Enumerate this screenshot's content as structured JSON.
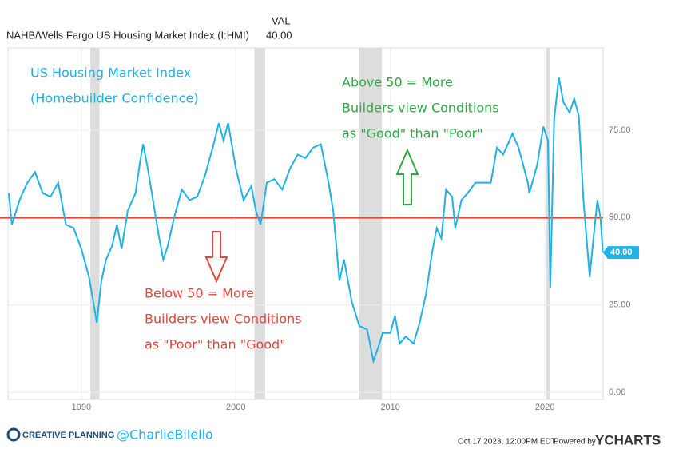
{
  "header": {
    "column": "VAL",
    "series_name": "NAHB/Wells Fargo US Housing Market Index (I:HMI)",
    "value": "40.00"
  },
  "chart_data": {
    "type": "line",
    "x": [
      1985.3,
      1985.5,
      1986,
      1986.5,
      1987,
      1987.5,
      1988,
      1988.5,
      1989,
      1989.5,
      1990,
      1990.5,
      1991,
      1991.3,
      1991.6,
      1992,
      1992.3,
      1992.6,
      1993,
      1993.5,
      1993.8,
      1994,
      1994.3,
      1994.6,
      1995,
      1995.3,
      1995.6,
      1996,
      1996.5,
      1997,
      1997.5,
      1998,
      1998.5,
      1998.9,
      1999.2,
      1999.5,
      2000,
      2000.5,
      2001,
      2001.3,
      2001.6,
      2002,
      2002.5,
      2003,
      2003.5,
      2004,
      2004.5,
      2005,
      2005.5,
      2006,
      2006.3,
      2006.7,
      2007,
      2007.5,
      2008,
      2008.5,
      2008.9,
      2009.3,
      2009.5,
      2010,
      2010.3,
      2010.6,
      2011,
      2011.5,
      2011.9,
      2012.3,
      2012.7,
      2013,
      2013.3,
      2013.6,
      2014,
      2014.2,
      2014.6,
      2015,
      2015.5,
      2016,
      2016.5,
      2016.9,
      2017.3,
      2017.9,
      2018.3,
      2018.9,
      2019,
      2019.5,
      2019.9,
      2020.2,
      2020.35,
      2020.6,
      2020.9,
      2021.2,
      2021.6,
      2021.9,
      2022.2,
      2022.5,
      2022.9,
      2023.1,
      2023.4,
      2023.6,
      2023.75
    ],
    "series": [
      {
        "name": "NAHB/Wells Fargo US Housing Market Index (I:HMI)",
        "color": "#1fb2e6",
        "values": [
          57,
          48,
          55,
          60,
          63,
          57,
          56,
          60,
          48,
          47,
          41,
          33,
          20,
          32,
          38,
          42,
          48,
          41,
          52,
          57,
          66,
          71,
          64,
          56,
          45,
          38,
          42,
          50,
          58,
          55,
          56,
          62,
          70,
          77,
          72,
          77,
          64,
          55,
          59,
          52,
          48,
          60,
          61,
          58,
          64,
          68,
          67,
          70,
          71,
          60,
          52,
          32,
          38,
          26,
          19,
          18,
          9,
          14,
          17,
          17,
          22,
          14,
          16,
          14,
          20,
          28,
          40,
          47,
          44,
          58,
          56,
          47,
          55,
          57,
          60,
          60,
          60,
          70,
          68,
          74,
          70,
          60,
          57,
          65,
          76,
          72,
          30,
          78,
          90,
          83,
          80,
          84,
          79,
          55,
          33,
          42,
          55,
          50,
          40
        ],
        "end_label": "40.00"
      }
    ],
    "xlim": [
      1985.25,
      2023.77
    ],
    "xticks": [
      1990,
      2000,
      2010,
      2020
    ],
    "ylim": [
      -2,
      98.5
    ],
    "yticks": [
      {
        "value": 0,
        "label": "0.00"
      },
      {
        "value": 25,
        "label": "25.00"
      },
      {
        "value": 50,
        "label": "50.00"
      },
      {
        "value": 75,
        "label": "75.00"
      }
    ],
    "grid": true,
    "reference_line": 50,
    "reference_color": "#e8453c",
    "shaded_periods": [
      [
        1990.58,
        1991.17
      ],
      [
        2001.2,
        2001.9
      ],
      [
        2007.95,
        2009.45
      ],
      [
        2020.1,
        2020.3
      ]
    ],
    "annotations": {
      "title": [
        "US Housing Market Index",
        "(Homebuilder Confidence)"
      ],
      "above": [
        "Above 50 = More",
        "Builders view Conditions",
        "as \"Good\" than \"Poor\""
      ],
      "below": [
        "Below 50 = More",
        "Builders view Conditions",
        "as \"Poor\" than \"Good\""
      ]
    }
  },
  "footer": {
    "brand": "CREATIVE PLANNING",
    "handle": "@CharlieBilello",
    "timestamp": "Oct 17 2023, 12:00PM EDT.",
    "powered": "Powered by",
    "ycharts": "YCHARTS"
  }
}
